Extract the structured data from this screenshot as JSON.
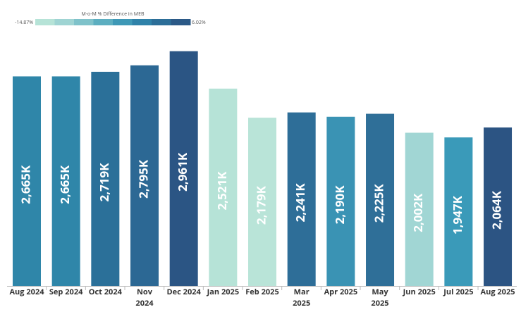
{
  "chart_data": {
    "type": "bar",
    "categories": [
      "Aug 2024",
      "Sep 2024",
      "Oct 2024",
      "Nov 2024",
      "Dec 2024",
      "Jan 2025",
      "Feb 2025",
      "Mar 2025",
      "Apr 2025",
      "May 2025",
      "Jun 2025",
      "Jul 2025",
      "Aug 2025"
    ],
    "values": [
      2665,
      2665,
      2719,
      2795,
      2961,
      2521,
      2179,
      2241,
      2190,
      2225,
      2002,
      1947,
      2064
    ],
    "value_labels": [
      "2,665K",
      "2,665K",
      "2,719K",
      "2,795K",
      "2,961K",
      "2,521K",
      "2,179K",
      "2,241K",
      "2,190K",
      "2,225K",
      "2,002K",
      "1,947K",
      "2,064K"
    ],
    "colors": [
      "#2f86a9",
      "#2f86a9",
      "#2b7099",
      "#2c6894",
      "#2b5584",
      "#b6e3d7",
      "#b9e4d8",
      "#2e6e98",
      "#3a93b4",
      "#2f6f98",
      "#a1d6d4",
      "#3a9ab9",
      "#2c5483"
    ],
    "ylim": [
      200,
      3000
    ],
    "legend": {
      "title": "M-o-M % Difference in MEB",
      "range": [
        {
          "value": -14.87,
          "label": "-14.87%"
        },
        {
          "value": 6.02,
          "label": "6.02%"
        }
      ],
      "colors": [
        "#b6e3d7",
        "#9fd4d3",
        "#7fc2ca",
        "#5caec0",
        "#3e98b6",
        "#2f82a9",
        "#2c6e98",
        "#2b5987"
      ]
    }
  }
}
